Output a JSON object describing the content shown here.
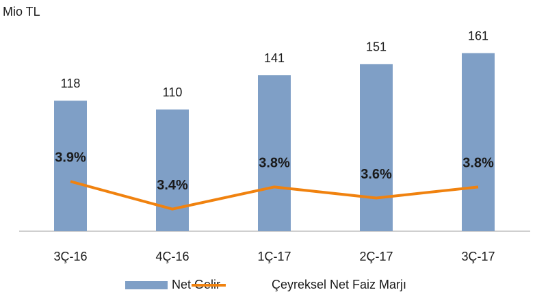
{
  "chart_data": {
    "type": "bar_line",
    "ylabel": "Mio TL",
    "categories": [
      "3Ç-16",
      "4Ç-16",
      "1Ç-17",
      "2Ç-17",
      "3Ç-17"
    ],
    "series": [
      {
        "name": "Net Gelir",
        "type": "bar",
        "color": "#7f9fc6",
        "values": [
          118,
          110,
          141,
          151,
          161
        ]
      },
      {
        "name": "Çeyreksel Net Faiz Marjı",
        "type": "line",
        "axis": "y2",
        "color": "#f0820f",
        "values": [
          3.9,
          3.4,
          3.8,
          3.6,
          3.8
        ],
        "value_labels": [
          "3.9%",
          "3.4%",
          "3.8%",
          "3.6%",
          "3.8%"
        ]
      }
    ],
    "ylim": [
      0,
      180
    ],
    "y2lim": [
      3.0,
      6.6
    ],
    "grid": false,
    "legend": "bottom"
  }
}
